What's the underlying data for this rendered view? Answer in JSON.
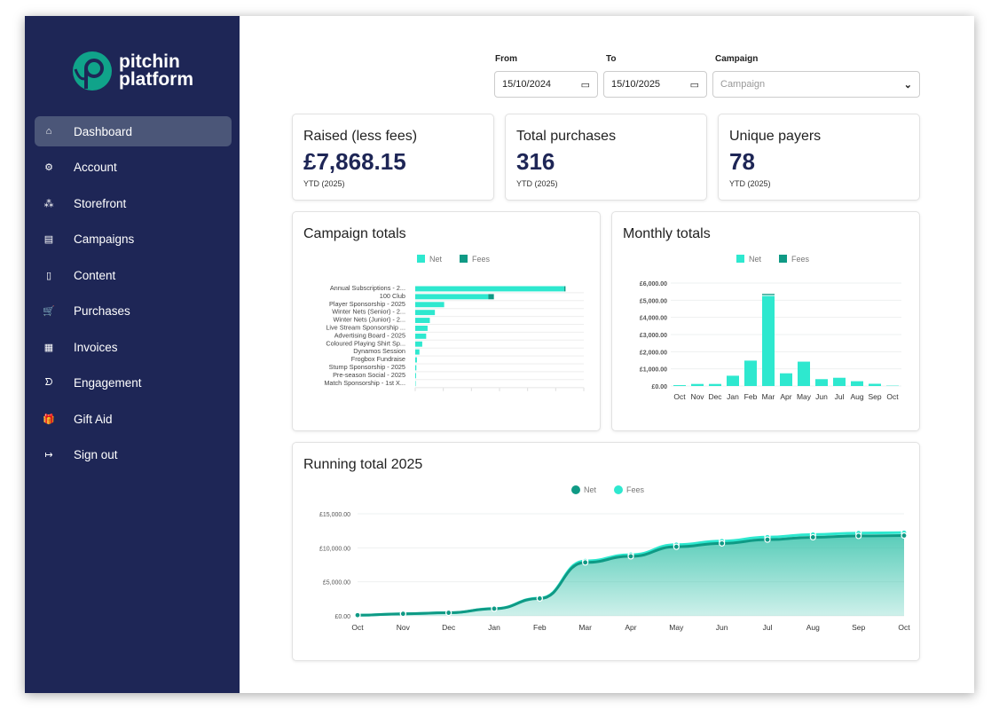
{
  "brand": {
    "line1": "pitchin",
    "line2": "platform"
  },
  "sidebar": {
    "items": [
      {
        "label": "Dashboard",
        "icon": "home-icon",
        "glyph": "⌂",
        "active": true
      },
      {
        "label": "Account",
        "icon": "gear-icon",
        "glyph": "⚙"
      },
      {
        "label": "Storefront",
        "icon": "sitemap-icon",
        "glyph": "⁂"
      },
      {
        "label": "Campaigns",
        "icon": "clipboard-icon",
        "glyph": "▤"
      },
      {
        "label": "Content",
        "icon": "document-icon",
        "glyph": "▯"
      },
      {
        "label": "Purchases",
        "icon": "cart-icon",
        "glyph": "🛒"
      },
      {
        "label": "Invoices",
        "icon": "receipt-icon",
        "glyph": "▦"
      },
      {
        "label": "Engagement",
        "icon": "engagement-icon",
        "glyph": "ᗤ"
      },
      {
        "label": "Gift Aid",
        "icon": "gift-icon",
        "glyph": "🎁"
      },
      {
        "label": "Sign out",
        "icon": "sign-out-icon",
        "glyph": "↦"
      }
    ]
  },
  "filters": {
    "from_label": "From",
    "from_value": "15/10/2024",
    "to_label": "To",
    "to_value": "15/10/2025",
    "campaign_label": "Campaign",
    "campaign_placeholder": "Campaign"
  },
  "stats": [
    {
      "title": "Raised (less fees)",
      "value": "£7,868.15",
      "sub": "YTD (2025)"
    },
    {
      "title": "Total purchases",
      "value": "316",
      "sub": "YTD (2025)"
    },
    {
      "title": "Unique payers",
      "value": "78",
      "sub": "YTD (2025)"
    }
  ],
  "colors": {
    "net": "#2ee8cf",
    "fees": "#0f9a85",
    "navy": "#1e2656"
  },
  "chart_data": [
    {
      "type": "bar",
      "orientation": "horizontal",
      "stacked": true,
      "title": "Campaign totals",
      "legend": [
        "Net",
        "Fees"
      ],
      "legend_position": "top",
      "categories": [
        "Annual Subscriptions - 2...",
        "100 Club",
        "Player Sponsorship - 2025",
        "Winter Nets (Senior) - 2...",
        "Winter Nets (Junior) - 2...",
        "Live Stream Sponsorship ...",
        "Advertising Board - 2025",
        "Coloured Playing Shirt Sp...",
        "Dynamos Session",
        "Frogbox Fundraise",
        "Stump Sponsorship - 2025",
        "Pre-season Social - 2025",
        "Match Sponsorship - 1st X..."
      ],
      "series": [
        {
          "name": "Net",
          "values": [
            5300,
            2600,
            1030,
            700,
            520,
            440,
            390,
            250,
            150,
            60,
            40,
            30,
            10
          ]
        },
        {
          "name": "Fees",
          "values": [
            50,
            200,
            0,
            0,
            0,
            0,
            0,
            0,
            0,
            0,
            0,
            0,
            0
          ]
        }
      ],
      "xlim": [
        0,
        6000
      ]
    },
    {
      "type": "bar",
      "stacked": true,
      "title": "Monthly totals",
      "legend": [
        "Net",
        "Fees"
      ],
      "legend_position": "top",
      "categories": [
        "Oct",
        "Nov",
        "Dec",
        "Jan",
        "Feb",
        "Mar",
        "Apr",
        "May",
        "Jun",
        "Jul",
        "Aug",
        "Sep",
        "Oct"
      ],
      "series": [
        {
          "name": "Net",
          "values": [
            50,
            120,
            120,
            600,
            1480,
            5250,
            740,
            1420,
            400,
            480,
            280,
            130,
            20
          ]
        },
        {
          "name": "Fees",
          "values": [
            0,
            0,
            0,
            0,
            0,
            120,
            0,
            0,
            0,
            0,
            0,
            0,
            0
          ]
        }
      ],
      "ylim": [
        0,
        6000
      ],
      "yticks": [
        "£0.00",
        "£1,000.00",
        "£2,000.00",
        "£3,000.00",
        "£4,000.00",
        "£5,000.00",
        "£6,000.00"
      ]
    },
    {
      "type": "area",
      "title": "Running total 2025",
      "legend": [
        "Net",
        "Fees"
      ],
      "legend_position": "top",
      "categories": [
        "Oct",
        "Nov",
        "Dec",
        "Jan",
        "Feb",
        "Mar",
        "Apr",
        "May",
        "Jun",
        "Jul",
        "Aug",
        "Sep",
        "Oct"
      ],
      "series": [
        {
          "name": "Net",
          "values": [
            100,
            300,
            450,
            1050,
            2550,
            7850,
            8750,
            10150,
            10650,
            11200,
            11550,
            11750,
            11800
          ]
        },
        {
          "name": "Fees",
          "values": [
            0,
            0,
            0,
            20,
            60,
            220,
            240,
            310,
            340,
            380,
            400,
            420,
            430
          ]
        }
      ],
      "ylim": [
        0,
        15000
      ],
      "yticks": [
        "£0.00",
        "£5,000.00",
        "£10,000.00",
        "£15,000.00"
      ]
    }
  ]
}
